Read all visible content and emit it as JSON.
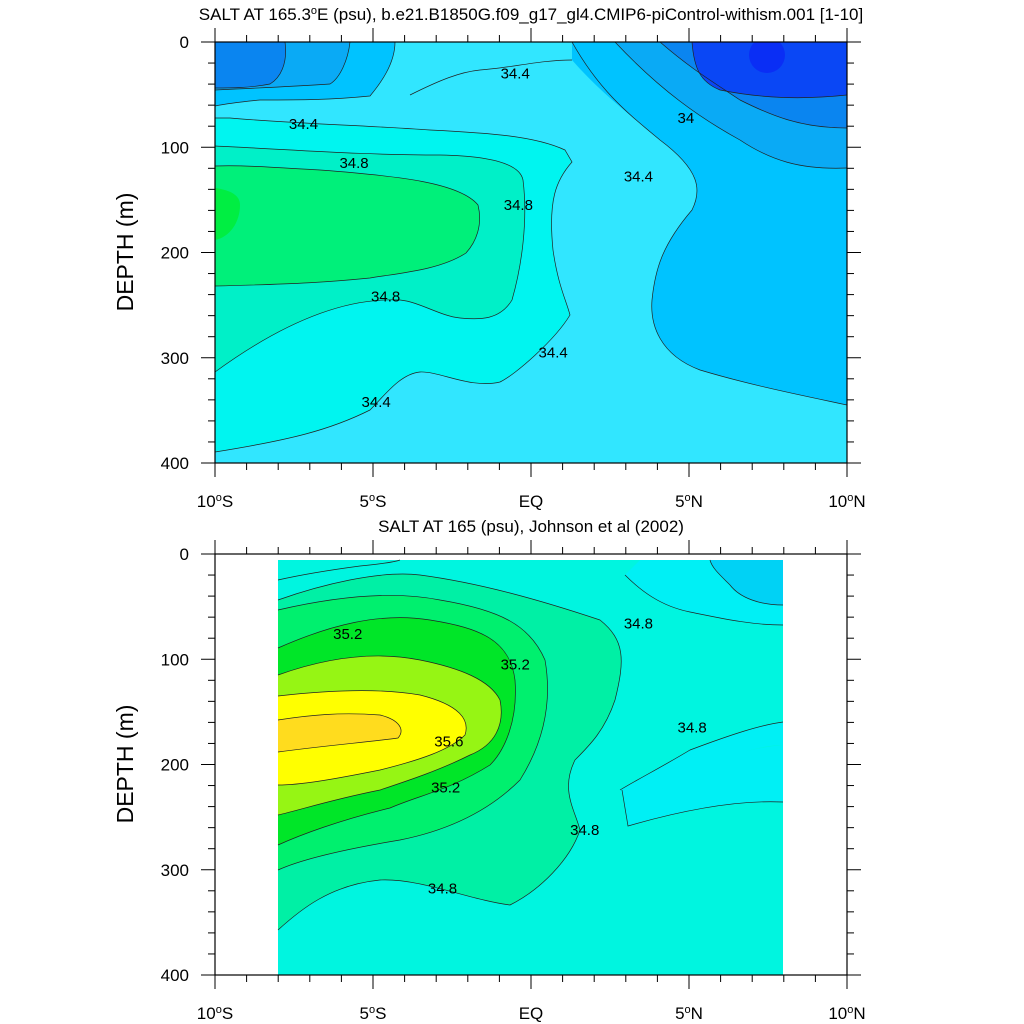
{
  "chart_data": [
    {
      "type": "contour",
      "title": "SALT AT 165.3°E (psu), b.e21.B1850G.f09_g17_gl4.CMIP6-piControl-withism.001 [1-10]",
      "title_main": "SALT AT 165.3",
      "title_deg": "o",
      "title_rest": "E (psu), b.e21.B1850G.f09_g17_gl4.CMIP6-piControl-withism.001 [1-10]",
      "ylabel": "DEPTH (m)",
      "xlim": [
        -10,
        10
      ],
      "ylim": [
        400,
        0
      ],
      "x_ticks": [
        {
          "value": -10,
          "main": "10",
          "deg": "o",
          "hem": "S"
        },
        {
          "value": -5,
          "main": "5",
          "deg": "o",
          "hem": "S"
        },
        {
          "value": 0,
          "main": "EQ",
          "deg": "",
          "hem": ""
        },
        {
          "value": 5,
          "main": "5",
          "deg": "o",
          "hem": "N"
        },
        {
          "value": 10,
          "main": "10",
          "deg": "o",
          "hem": "N"
        }
      ],
      "y_ticks": [
        {
          "value": 0,
          "label": "0"
        },
        {
          "value": 100,
          "label": "100"
        },
        {
          "value": 200,
          "label": "200"
        },
        {
          "value": 300,
          "label": "300"
        },
        {
          "value": 400,
          "label": "400"
        }
      ],
      "levels": [
        {
          "value": 33.8,
          "color": "#0a47f5"
        },
        {
          "value": 34.0,
          "color": "#0a85f0"
        },
        {
          "value": 34.2,
          "color": "#0aaaf5"
        },
        {
          "value": 34.4,
          "color": "#00c3ff"
        },
        {
          "value": 34.6,
          "color": "#31e6ff"
        },
        {
          "value": 34.8,
          "color": "#00f5f0"
        },
        {
          "value": 35.0,
          "color": "#00f0c8"
        },
        {
          "value": 35.2,
          "color": "#00f07a"
        },
        {
          "value": 35.4,
          "color": "#00ee42"
        }
      ],
      "contour_labels": [
        {
          "text": "34.4",
          "x": -0.5,
          "y": 30
        },
        {
          "text": "34.4",
          "x": -7.2,
          "y": 78
        },
        {
          "text": "34",
          "x": 4.9,
          "y": 72
        },
        {
          "text": "34.8",
          "x": -5.6,
          "y": 115
        },
        {
          "text": "34.8",
          "x": -0.4,
          "y": 155
        },
        {
          "text": "34.4",
          "x": 3.4,
          "y": 128
        },
        {
          "text": "34.8",
          "x": -4.6,
          "y": 242
        },
        {
          "text": "34.4",
          "x": 0.7,
          "y": 295
        },
        {
          "text": "34.4",
          "x": -4.9,
          "y": 342
        }
      ]
    },
    {
      "type": "contour",
      "title": "SALT AT 165 (psu), Johnson et al (2002)",
      "ylabel": "DEPTH (m)",
      "xlim": [
        -10,
        10
      ],
      "ylim": [
        400,
        0
      ],
      "data_xrange": [
        -8,
        8
      ],
      "x_ticks": [
        {
          "value": -10,
          "main": "10",
          "deg": "o",
          "hem": "S"
        },
        {
          "value": -5,
          "main": "5",
          "deg": "o",
          "hem": "S"
        },
        {
          "value": 0,
          "main": "EQ",
          "deg": "",
          "hem": ""
        },
        {
          "value": 5,
          "main": "5",
          "deg": "o",
          "hem": "N"
        },
        {
          "value": 10,
          "main": "10",
          "deg": "o",
          "hem": "N"
        }
      ],
      "y_ticks": [
        {
          "value": 0,
          "label": "0"
        },
        {
          "value": 100,
          "label": "100"
        },
        {
          "value": 200,
          "label": "200"
        },
        {
          "value": 300,
          "label": "300"
        },
        {
          "value": 400,
          "label": "400"
        }
      ],
      "levels": [
        {
          "value": 34.4,
          "color": "#00d2f5"
        },
        {
          "value": 34.6,
          "color": "#00f0f5"
        },
        {
          "value": 34.8,
          "color": "#00f5e0"
        },
        {
          "value": 35.0,
          "color": "#00f0a5"
        },
        {
          "value": 35.2,
          "color": "#00f06e"
        },
        {
          "value": 35.4,
          "color": "#00e628"
        },
        {
          "value": 35.6,
          "color": "#96f514"
        },
        {
          "value": 35.8,
          "color": "#ffff00"
        },
        {
          "value": 36.0,
          "color": "#ffdc1e"
        }
      ],
      "contour_labels": [
        {
          "text": "35.2",
          "x": -5.8,
          "y": 76
        },
        {
          "text": "35.2",
          "x": -0.5,
          "y": 105
        },
        {
          "text": "34.8",
          "x": 3.4,
          "y": 66
        },
        {
          "text": "35.6",
          "x": -2.6,
          "y": 178
        },
        {
          "text": "34.8",
          "x": 5.1,
          "y": 165
        },
        {
          "text": "35.2",
          "x": -2.7,
          "y": 222
        },
        {
          "text": "34.8",
          "x": 1.7,
          "y": 262
        },
        {
          "text": "34.8",
          "x": -2.8,
          "y": 318
        }
      ]
    }
  ]
}
